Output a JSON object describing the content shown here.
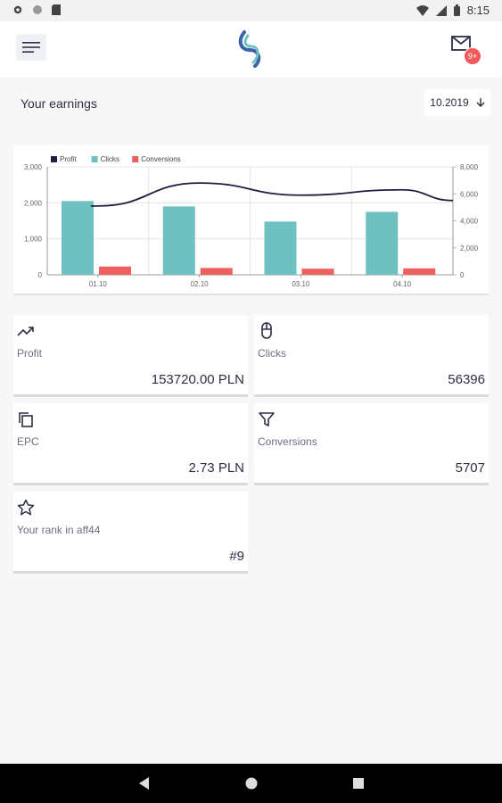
{
  "status_bar": {
    "time": "8:15"
  },
  "header": {
    "mail_badge": "9+"
  },
  "earnings": {
    "label": "Your earnings",
    "period": "10.2019"
  },
  "chart_data": {
    "type": "bar",
    "categories": [
      "01.10",
      "02.10",
      "03.10",
      "04.10"
    ],
    "series": [
      {
        "name": "Profit",
        "kind": "line",
        "axis": "right",
        "values": [
          5100,
          6800,
          5900,
          6300
        ]
      },
      {
        "name": "Clicks",
        "kind": "bar",
        "axis": "left",
        "values": [
          2050,
          1900,
          1480,
          1750
        ]
      },
      {
        "name": "Conversions",
        "kind": "bar",
        "axis": "left",
        "values": [
          230,
          190,
          170,
          180
        ]
      }
    ],
    "left_ticks": [
      "0",
      "1,000",
      "2,000",
      "3,000"
    ],
    "right_ticks": [
      "0",
      "2,000",
      "4,000",
      "6,000",
      "8,000"
    ],
    "ylim_left": [
      0,
      3000
    ],
    "ylim_right": [
      0,
      8000
    ],
    "colors": {
      "Profit": "#1c1f3f",
      "Clicks": "#6ec1c0",
      "Conversions": "#ef5f5d"
    },
    "legend_position": "top-left",
    "grid": true
  },
  "stats": {
    "profit": {
      "label": "Profit",
      "value": "153720.00 PLN",
      "icon": "trending-up-icon"
    },
    "clicks": {
      "label": "Clicks",
      "value": "56396",
      "icon": "mouse-icon"
    },
    "epc": {
      "label": "EPC",
      "value": "2.73 PLN",
      "icon": "copy-icon"
    },
    "conversions": {
      "label": "Conversions",
      "value": "5707",
      "icon": "filter-icon"
    },
    "rank": {
      "label": "Your rank in aff44",
      "value": "#9",
      "icon": "star-icon"
    }
  }
}
